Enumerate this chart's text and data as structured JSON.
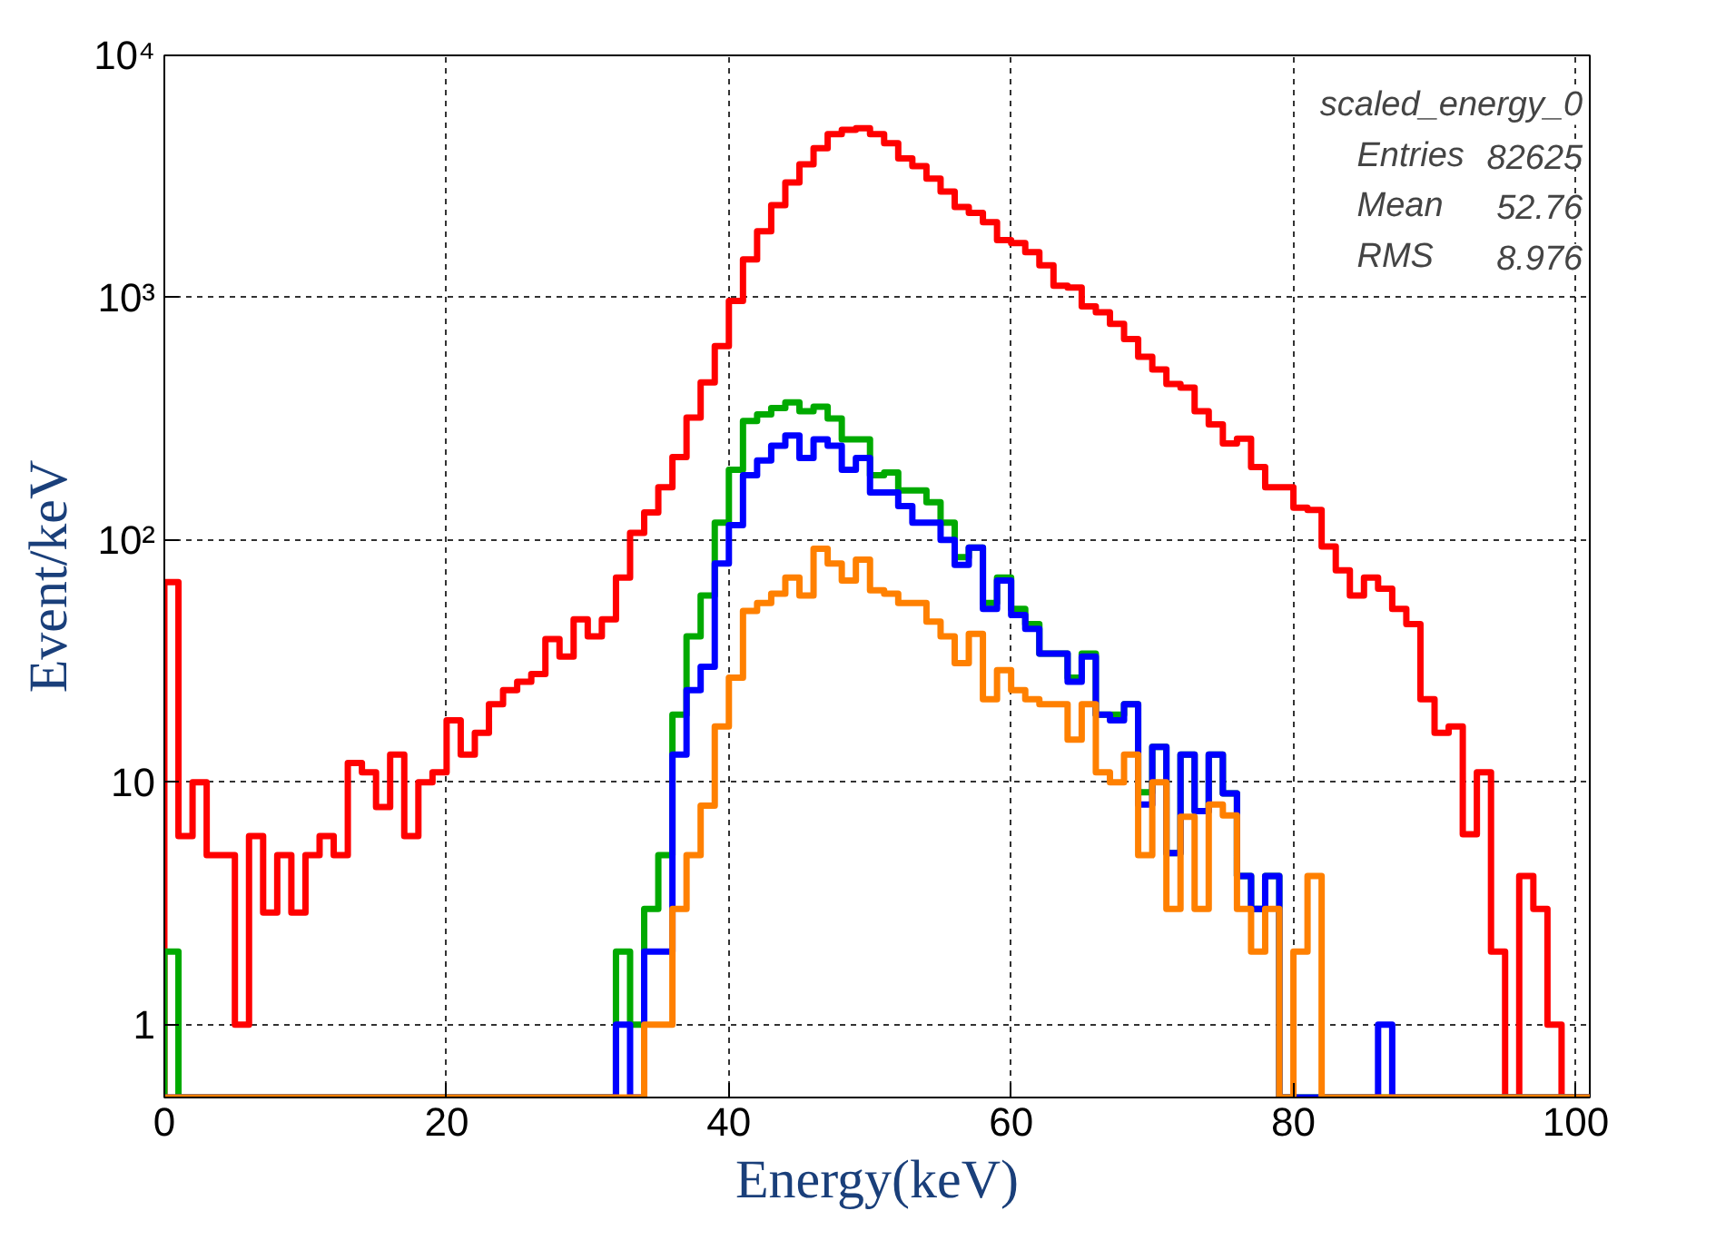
{
  "chart_data": {
    "type": "histogram",
    "xlabel": "Energy(keV)",
    "ylabel": "Event/keV",
    "bins": [
      0,
      1,
      2,
      3,
      4,
      5,
      6,
      7,
      8,
      9,
      10,
      11,
      12,
      13,
      14,
      15,
      16,
      17,
      18,
      19,
      20,
      21,
      22,
      23,
      24,
      25,
      26,
      27,
      28,
      29,
      30,
      31,
      32,
      33,
      34,
      35,
      36,
      37,
      38,
      39,
      40,
      41,
      42,
      43,
      44,
      45,
      46,
      47,
      48,
      49,
      50,
      51,
      52,
      53,
      54,
      55,
      56,
      57,
      58,
      59,
      60,
      61,
      62,
      63,
      64,
      65,
      66,
      67,
      68,
      69,
      70,
      71,
      72,
      73,
      74,
      75,
      76,
      77,
      78,
      79,
      80,
      81,
      82,
      83,
      84,
      85,
      86,
      87,
      88,
      89,
      90,
      91,
      92,
      93,
      94,
      95,
      96,
      97,
      98,
      99,
      100,
      101
    ],
    "series": [
      {
        "color": "#ff0000",
        "values": [
          67,
          6,
          10,
          5,
          5,
          1,
          6,
          2.9,
          5,
          2.9,
          5,
          6,
          5,
          12,
          11,
          7.9,
          13,
          6,
          10,
          11,
          18,
          13,
          16,
          21,
          24,
          26,
          28,
          39,
          33,
          47,
          40,
          47,
          70,
          107,
          130,
          165,
          220,
          320,
          447,
          631,
          970,
          1440,
          1880,
          2410,
          2990,
          3550,
          4140,
          4730,
          4930,
          5000,
          4730,
          4340,
          3760,
          3490,
          3100,
          2740,
          2370,
          2240,
          2050,
          1730,
          1680,
          1540,
          1360,
          1120,
          1100,
          920,
          870,
          780,
          675,
          570,
          505,
          440,
          425,
          340,
          300,
          250,
          262,
          200,
          165,
          165,
          136,
          133,
          94,
          75,
          59,
          70,
          63,
          52,
          45,
          22,
          16,
          17,
          6.1,
          11,
          2,
          null,
          4.1,
          3,
          1,
          null,
          null
        ]
      },
      {
        "color": "#00aa00",
        "values": [
          2,
          null,
          null,
          null,
          null,
          null,
          null,
          null,
          null,
          null,
          null,
          null,
          null,
          null,
          null,
          null,
          null,
          null,
          null,
          null,
          null,
          null,
          null,
          null,
          null,
          null,
          null,
          null,
          null,
          null,
          null,
          null,
          2,
          1,
          3,
          5,
          19,
          40,
          59,
          118,
          195,
          310,
          330,
          350,
          370,
          340,
          355,
          317,
          260,
          260,
          185,
          190,
          160,
          160,
          143,
          118,
          85,
          93,
          55,
          70,
          52,
          45,
          34,
          34,
          27,
          34,
          19,
          19,
          21,
          9.1,
          14,
          5.1,
          13,
          7.6,
          13,
          9,
          4.1,
          3,
          4.1,
          null,
          null,
          null,
          null,
          null,
          null,
          null,
          null,
          null,
          null,
          null,
          null,
          null,
          null,
          null,
          null,
          null,
          null,
          null,
          null,
          null,
          null
        ]
      },
      {
        "color": "#0000ff",
        "values": [
          null,
          null,
          null,
          null,
          null,
          null,
          null,
          null,
          null,
          null,
          null,
          null,
          null,
          null,
          null,
          null,
          null,
          null,
          null,
          null,
          null,
          null,
          null,
          null,
          null,
          null,
          null,
          null,
          null,
          null,
          null,
          null,
          1,
          null,
          2,
          2,
          13,
          24,
          30,
          80,
          115,
          185,
          213,
          245,
          270,
          218,
          260,
          245,
          195,
          218,
          157,
          157,
          138,
          118,
          118,
          100,
          79,
          93,
          52,
          68,
          49,
          43,
          34,
          34,
          26,
          33,
          19,
          18,
          21,
          8.1,
          14,
          5.1,
          13,
          7.6,
          13,
          9,
          4.1,
          3,
          4.1,
          null,
          null,
          null,
          null,
          null,
          null,
          null,
          1,
          null,
          null,
          null,
          null,
          null,
          null,
          null,
          null,
          null,
          null,
          null,
          null,
          null,
          null
        ]
      },
      {
        "color": "#ff8000",
        "values": [
          null,
          null,
          null,
          null,
          null,
          null,
          null,
          null,
          null,
          null,
          null,
          null,
          null,
          null,
          null,
          null,
          null,
          null,
          null,
          null,
          null,
          null,
          null,
          null,
          null,
          null,
          null,
          null,
          null,
          null,
          null,
          null,
          null,
          null,
          1,
          1,
          3,
          5,
          8,
          17,
          27,
          51,
          55,
          60,
          70,
          59,
          92,
          80,
          68,
          83,
          62,
          60,
          55,
          55,
          46,
          40,
          31,
          41,
          22,
          29,
          24,
          22,
          21,
          21,
          15,
          21,
          11,
          10,
          13,
          5,
          10,
          3,
          7.2,
          3,
          8.1,
          7.3,
          3,
          2,
          3,
          null,
          2,
          4.1,
          null,
          null,
          null,
          null,
          null,
          null,
          null,
          null,
          null,
          null,
          null,
          null,
          null,
          null,
          null,
          null,
          null,
          null,
          null
        ]
      }
    ],
    "xlim": [
      0,
      101
    ],
    "xticks": [
      0,
      20,
      40,
      60,
      80,
      100
    ],
    "ylim": [
      0.5,
      10000
    ],
    "log": "y",
    "yticks": [
      1,
      10,
      {
        "value": 100,
        "label": "10²"
      },
      {
        "value": 1000,
        "label": "10³"
      },
      {
        "value": 10000,
        "label": "10⁴"
      }
    ],
    "grid": true,
    "line_style": "solid",
    "annotations": [
      "scaled_energy_0",
      "Entries",
      "82625",
      "Mean",
      "52.76",
      "RMS",
      "8.976"
    ]
  }
}
